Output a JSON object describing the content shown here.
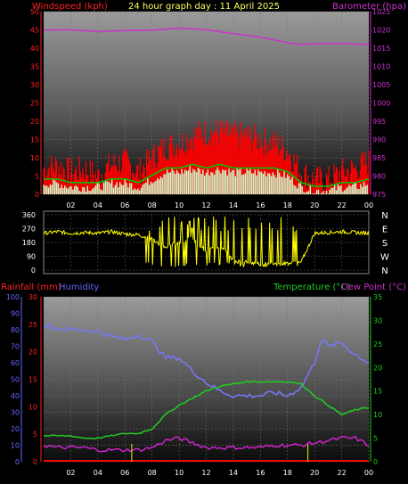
{
  "header": {
    "left_label": "Windspeed (kph)",
    "title": "24 hour graph day : 11 April 2025",
    "right_label": "Barometer (hpa)"
  },
  "bottom_header": {
    "rain_label": "Rainfall (mm)",
    "humidity_label": "Humidity",
    "temp_label": "Temperature (°C)",
    "dew_label": "Dew Point (°C)"
  },
  "colors": {
    "wind_gust": "#ff0000",
    "wind_avg": "#00cc00",
    "wind_low": "#ccffcc",
    "barometer": "#cc33cc",
    "direction": "#ffff00",
    "humidity": "#7777ff",
    "temperature": "#22cc22",
    "dewpoint": "#cc22cc",
    "rain": "#ff0000",
    "rain_marker": "#cccc00",
    "left_axis_top": "#ff2222",
    "right_axis_top": "#cc33cc",
    "left_axis_bottom_rain": "#ff2222",
    "left_axis_bottom_hum": "#6666ff",
    "right_axis_bottom": "#22cc22"
  },
  "chart_data": [
    {
      "type": "line",
      "x_ticks": [
        "02",
        "04",
        "06",
        "08",
        "10",
        "12",
        "14",
        "16",
        "18",
        "20",
        "22",
        "00"
      ],
      "xlim": [
        0,
        24
      ],
      "ylim_left": [
        0,
        50
      ],
      "left_ticks": [
        "0",
        "5",
        "10",
        "15",
        "20",
        "25",
        "30",
        "35",
        "40",
        "45",
        "50"
      ],
      "ylim_right": [
        975,
        1025
      ],
      "right_ticks": [
        "975",
        "980",
        "985",
        "990",
        "995",
        "1000",
        "1005",
        "1010",
        "1015",
        "1020",
        "1025"
      ],
      "series": [
        {
          "name": "Barometer (hpa)",
          "axis": "right",
          "x": [
            0,
            2,
            4,
            6,
            8,
            10,
            11,
            12,
            14,
            16,
            18,
            19,
            20,
            22,
            23,
            24
          ],
          "values": [
            1020,
            1020,
            1019.5,
            1019.8,
            1019.9,
            1020.5,
            1020.3,
            1020,
            1019,
            1018,
            1016.5,
            1016,
            1016.2,
            1016.3,
            1016.1,
            1016
          ]
        },
        {
          "name": "gust",
          "axis": "left",
          "x": [
            0,
            1,
            2,
            3,
            4,
            5,
            6,
            7,
            8,
            9,
            10,
            11,
            12,
            13,
            14,
            15,
            16,
            17,
            18,
            19,
            20,
            21,
            22,
            23,
            24
          ],
          "values": [
            7,
            8,
            6,
            7,
            5,
            8,
            9,
            6,
            10,
            13,
            14,
            16,
            17,
            17,
            16,
            16,
            15,
            14,
            12,
            6,
            4,
            4,
            6,
            7,
            9
          ]
        },
        {
          "name": "average",
          "axis": "left",
          "x": [
            0,
            1,
            2,
            3,
            4,
            5,
            6,
            7,
            8,
            9,
            10,
            11,
            12,
            13,
            14,
            15,
            16,
            17,
            18,
            19,
            20,
            21,
            22,
            23,
            24
          ],
          "values": [
            3,
            3,
            2,
            2,
            2,
            3,
            3,
            2,
            4,
            6,
            6,
            7,
            6,
            7,
            6,
            6,
            6,
            6,
            5,
            2,
            1,
            1,
            2,
            2,
            3
          ]
        }
      ]
    },
    {
      "type": "scatter",
      "x_ticks": [],
      "xlim": [
        0,
        24
      ],
      "ylim": [
        0,
        360
      ],
      "left_ticks": [
        "0",
        "90",
        "180",
        "270",
        "360"
      ],
      "right_ticks": [
        "N",
        "W",
        "S",
        "E",
        "N"
      ],
      "series": [
        {
          "name": "direction",
          "x": [
            0,
            1,
            2,
            3,
            4,
            5,
            6,
            7,
            8,
            9,
            10,
            11,
            12,
            13,
            14,
            15,
            16,
            17,
            18,
            19,
            20,
            21,
            22,
            23,
            24
          ],
          "values": [
            240,
            250,
            240,
            245,
            240,
            250,
            235,
            230,
            200,
            150,
            180,
            210,
            120,
            160,
            60,
            50,
            40,
            40,
            45,
            50,
            240,
            245,
            250,
            245,
            240
          ]
        }
      ]
    },
    {
      "type": "line",
      "x_ticks": [
        "02",
        "04",
        "06",
        "08",
        "10",
        "12",
        "14",
        "16",
        "18",
        "20",
        "22",
        "00"
      ],
      "xlim": [
        0,
        24
      ],
      "ylim_rain": [
        0,
        30
      ],
      "rain_ticks": [
        "0",
        "5",
        "10",
        "15",
        "20",
        "25",
        "30"
      ],
      "ylim_humidity": [
        0,
        100
      ],
      "humidity_ticks": [
        "0",
        "10",
        "20",
        "30",
        "40",
        "50",
        "60",
        "70",
        "80",
        "90",
        "100"
      ],
      "ylim_temp": [
        0,
        35
      ],
      "temp_ticks": [
        "0",
        "5",
        "10",
        "15",
        "20",
        "25",
        "30",
        "35"
      ],
      "series": [
        {
          "name": "Humidity",
          "axis": "humidity",
          "x": [
            0,
            1,
            2,
            3,
            4,
            5,
            6,
            7,
            8,
            9,
            10,
            11,
            12,
            13,
            14,
            15,
            16,
            17,
            18,
            19,
            20,
            20.5,
            21,
            22,
            23,
            24
          ],
          "values": [
            83,
            81,
            80,
            80,
            79,
            76,
            74,
            77,
            73,
            63,
            63,
            55,
            48,
            43,
            40,
            40,
            40,
            42,
            40,
            45,
            60,
            75,
            70,
            72,
            65,
            60
          ]
        },
        {
          "name": "Temperature (°C)",
          "axis": "temp",
          "x": [
            0,
            1,
            2,
            3,
            4,
            5,
            6,
            7,
            8,
            9,
            10,
            11,
            12,
            13,
            14,
            15,
            16,
            17,
            18,
            19,
            20,
            21,
            22,
            23,
            24
          ],
          "values": [
            5.5,
            5.5,
            5.5,
            5,
            5,
            5.5,
            6,
            6,
            7,
            10,
            12,
            13.5,
            15,
            16,
            16.5,
            17,
            17,
            17,
            17,
            16.5,
            14,
            12,
            10,
            11,
            11.5
          ]
        },
        {
          "name": "Dew Point (°C)",
          "axis": "temp",
          "x": [
            0,
            1,
            2,
            3,
            4,
            5,
            6,
            7,
            8,
            9,
            10,
            11,
            12,
            13,
            14,
            15,
            16,
            17,
            18,
            19,
            20,
            21,
            22,
            23,
            24
          ],
          "values": [
            3.5,
            3,
            3,
            3,
            2.5,
            2.5,
            2.5,
            2.5,
            3,
            4.5,
            5,
            4,
            3,
            3,
            3,
            3,
            3,
            3.5,
            3.5,
            3.5,
            4,
            4.5,
            5,
            5,
            3.5
          ]
        },
        {
          "name": "Rainfall (mm)",
          "axis": "rain",
          "x": [
            0,
            24
          ],
          "values": [
            0,
            0
          ]
        }
      ],
      "rain_markers_hour": [
        6.5,
        19.5
      ]
    }
  ]
}
